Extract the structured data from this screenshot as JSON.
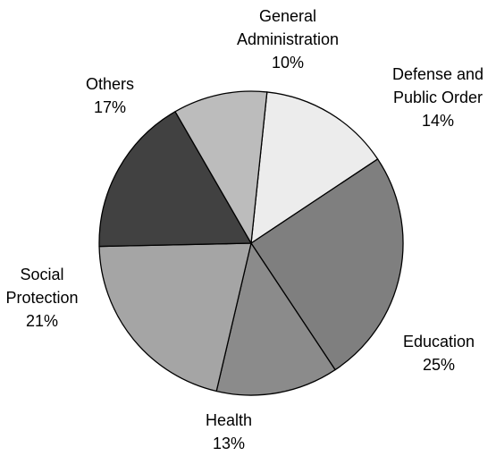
{
  "chart_data": {
    "type": "pie",
    "start_angle_deg": -84,
    "direction": "clockwise",
    "slices": [
      {
        "label_lines": [
          "Defense and",
          "Public Order"
        ],
        "value_label": "14%",
        "value": 14,
        "color": "#ececec"
      },
      {
        "label_lines": [
          "Education"
        ],
        "value_label": "25%",
        "value": 25,
        "color": "#7f7f7f"
      },
      {
        "label_lines": [
          "Health"
        ],
        "value_label": "13%",
        "value": 13,
        "color": "#8b8b8b"
      },
      {
        "label_lines": [
          "Social",
          "Protection"
        ],
        "value_label": "21%",
        "value": 21,
        "color": "#a5a5a5"
      },
      {
        "label_lines": [
          "Others"
        ],
        "value_label": "17%",
        "value": 17,
        "color": "#414141"
      },
      {
        "label_lines": [
          "General",
          "Administration"
        ],
        "value_label": "10%",
        "value": 10,
        "color": "#bcbcbc"
      }
    ]
  }
}
